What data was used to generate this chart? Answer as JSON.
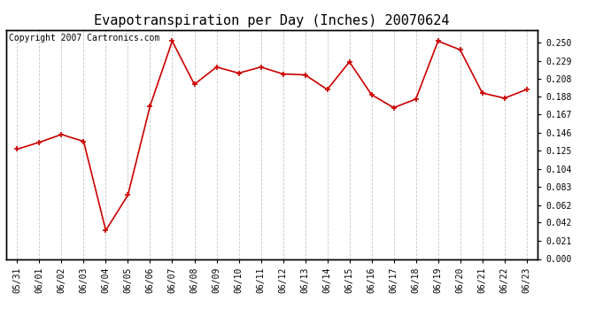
{
  "title": "Evapotranspiration per Day (Inches) 20070624",
  "copyright_text": "Copyright 2007 Cartronics.com",
  "x_labels": [
    "05/31",
    "06/01",
    "06/02",
    "06/03",
    "06/04",
    "06/05",
    "06/06",
    "06/07",
    "06/08",
    "06/09",
    "06/10",
    "06/11",
    "06/12",
    "06/13",
    "06/14",
    "06/15",
    "06/16",
    "06/17",
    "06/18",
    "06/19",
    "06/20",
    "06/21",
    "06/22",
    "06/23"
  ],
  "y_values": [
    0.127,
    0.135,
    0.144,
    0.136,
    0.033,
    0.074,
    0.177,
    0.252,
    0.202,
    0.222,
    0.215,
    0.222,
    0.214,
    0.213,
    0.196,
    0.228,
    0.19,
    0.175,
    0.185,
    0.252,
    0.242,
    0.192,
    0.186,
    0.196
  ],
  "line_color": "#cc0000",
  "marker": "+",
  "marker_size": 5,
  "background_color": "#ffffff",
  "plot_bg_color": "#ffffff",
  "grid_color": "#c8c8c8",
  "y_ticks": [
    0.0,
    0.021,
    0.042,
    0.062,
    0.083,
    0.104,
    0.125,
    0.146,
    0.167,
    0.188,
    0.208,
    0.229,
    0.25
  ],
  "ylim": [
    0.0,
    0.265
  ],
  "title_fontsize": 11,
  "copyright_fontsize": 7,
  "tick_fontsize": 7,
  "figsize": [
    6.9,
    3.75
  ],
  "dpi": 100
}
